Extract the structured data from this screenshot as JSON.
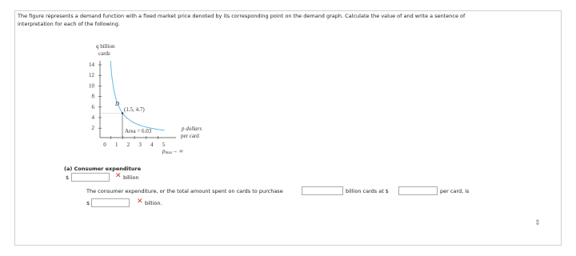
{
  "problem": {
    "line_1": "The figure represents a demand function with a fixed market price denoted by its corresponding point on the demand graph. Calculate the value of and write a sentence of",
    "line_2": "interpretation for each of the following."
  },
  "figure": {
    "y_label_1": "q billion",
    "y_label_2": "cards",
    "y_ticks": [
      "14",
      "12",
      "10",
      "8",
      "6",
      "4",
      "2"
    ],
    "x_ticks": [
      "0",
      "1",
      "2",
      "3",
      "4",
      "5"
    ],
    "curve_label": "D",
    "point_label": "(1.5, 4.7)",
    "area_label": "Area = 6.03",
    "x_label_1": "p dollars",
    "x_label_2": "per card",
    "pmax_symbol": "p",
    "pmax_subscript": "max",
    "pmax_arrow": "→ ∞"
  },
  "part_a": {
    "title": "(a) Consumer expenditure",
    "currency": "$",
    "unit": "billion"
  },
  "sentence": {
    "text_1": "The consumer expenditure, or the total amount spent on cards to purchase",
    "text_2": "billion cards at $",
    "text_3": "per card, is",
    "currency": "$",
    "unit": "billion."
  }
}
